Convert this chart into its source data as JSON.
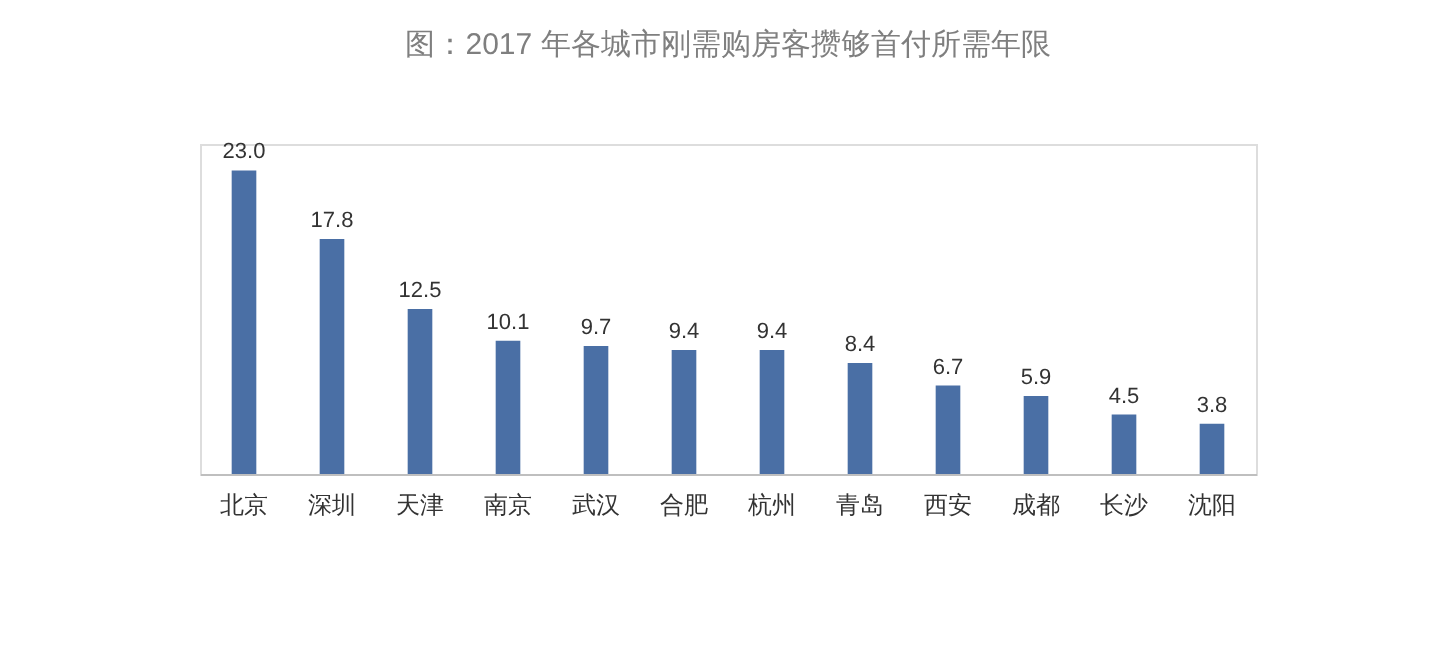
{
  "chart_data": {
    "type": "bar",
    "title": "图：2017 年各城市刚需购房客攒够首付所需年限",
    "categories": [
      "北京",
      "深圳",
      "天津",
      "南京",
      "武汉",
      "合肥",
      "杭州",
      "青岛",
      "西安",
      "成都",
      "长沙",
      "沈阳"
    ],
    "values": [
      23.0,
      17.8,
      12.5,
      10.1,
      9.7,
      9.4,
      9.4,
      8.4,
      6.7,
      5.9,
      4.5,
      3.8
    ],
    "value_labels": [
      "23.0",
      "17.8",
      "12.5",
      "10.1",
      "9.7",
      "9.4",
      "9.4",
      "8.4",
      "6.7",
      "5.9",
      "4.5",
      "3.8"
    ],
    "color": "#4a6fa5",
    "ylim": [
      0,
      25
    ],
    "tick_labels": "x",
    "grid": false
  }
}
